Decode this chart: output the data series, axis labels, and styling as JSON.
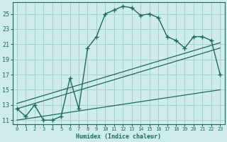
{
  "xlabel": "Humidex (Indice chaleur)",
  "background_color": "#ceecea",
  "line_color": "#1a6b5a",
  "grid_color": "#aacfcc",
  "xlim": [
    -0.5,
    23.5
  ],
  "ylim": [
    10.5,
    26.5
  ],
  "yticks": [
    11,
    13,
    15,
    17,
    19,
    21,
    23,
    25
  ],
  "xticks": [
    0,
    1,
    2,
    3,
    4,
    5,
    6,
    7,
    8,
    9,
    10,
    11,
    12,
    13,
    14,
    15,
    16,
    17,
    18,
    19,
    20,
    21,
    22,
    23
  ],
  "main_x": [
    0,
    1,
    2,
    3,
    4,
    5,
    6,
    7,
    8,
    9,
    10,
    11,
    12,
    13,
    14,
    15,
    16,
    17,
    18,
    19,
    20,
    21,
    22,
    23
  ],
  "main_y": [
    12.5,
    11.5,
    13.0,
    11.0,
    11.0,
    11.5,
    16.5,
    12.5,
    20.5,
    22.0,
    25.0,
    25.5,
    26.0,
    25.8,
    24.8,
    25.0,
    24.5,
    22.0,
    21.5,
    20.5,
    22.0,
    22.0,
    21.5,
    17.0
  ],
  "ref_line1_x": [
    0,
    23
  ],
  "ref_line1_y": [
    12.5,
    20.5
  ],
  "ref_line2_x": [
    0,
    23
  ],
  "ref_line2_y": [
    13.2,
    21.2
  ],
  "ref_line3_x": [
    0,
    23
  ],
  "ref_line3_y": [
    11.0,
    15.0
  ]
}
